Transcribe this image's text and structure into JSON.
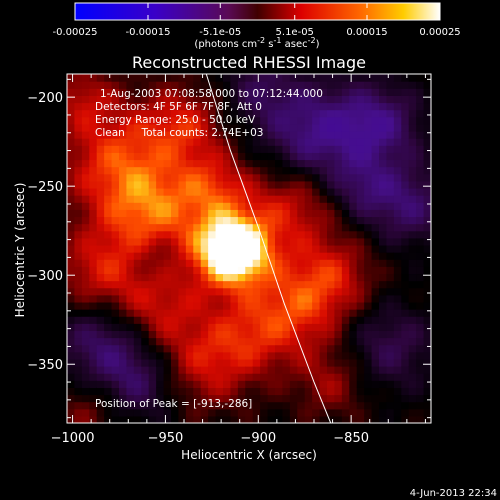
{
  "colors": {
    "background": "#000000",
    "axes": "#ffffff",
    "limb": "#ffffff"
  },
  "colorbar": {
    "colormap": "blue-purple-red-orange-yellow-white",
    "range": [
      -0.00025,
      0.00025
    ],
    "tick_labels": [
      "-0.00025",
      "-0.00015",
      "-5.1e-05",
      "5.1e-05",
      "0.00015",
      "0.00025"
    ],
    "tick_values": [
      -0.00025,
      -0.00015,
      -5.1e-05,
      5.1e-05,
      0.00015,
      0.00025
    ],
    "units": "(photons cm<sup>-2</sup> s<sup>-1</sup> asec<sup>-2</sup>)"
  },
  "chart_data": {
    "type": "heatmap",
    "title": "Reconstructed RHESSI Image",
    "xlabel": "Heliocentric X (arcsec)",
    "ylabel": "Heliocentric Y (arcsec)",
    "xlim": [
      -1003,
      -807
    ],
    "ylim": [
      -383,
      -187
    ],
    "xticks": [
      -1000,
      -950,
      -900,
      -850
    ],
    "xtick_labels": [
      "−1000",
      "−950",
      "−900",
      "−850"
    ],
    "yticks": [
      -200,
      -250,
      -300,
      -350
    ],
    "ytick_labels": [
      "−200",
      "−250",
      "−300",
      "−350"
    ],
    "peak": {
      "x": -913,
      "y": -286
    },
    "limb_curve": [
      [
        -928,
        -187
      ],
      [
        -915,
        -230
      ],
      [
        -900,
        -273
      ],
      [
        -886,
        -316
      ],
      [
        -870,
        -360
      ],
      [
        -861,
        -383
      ]
    ],
    "annotations": [
      "1-Aug-2003 07:08:58.000 to 07:12:44.000",
      "Detectors: 4F 5F 6F 7F 8F, Att 0",
      "Energy Range: 25.0 - 50.0 keV",
      "Clean     Total counts: 2.74E+03"
    ],
    "peak_label": "Position of Peak = [-913,-286]"
  },
  "footer": {
    "date": "4-Jun-2013 22:34"
  }
}
